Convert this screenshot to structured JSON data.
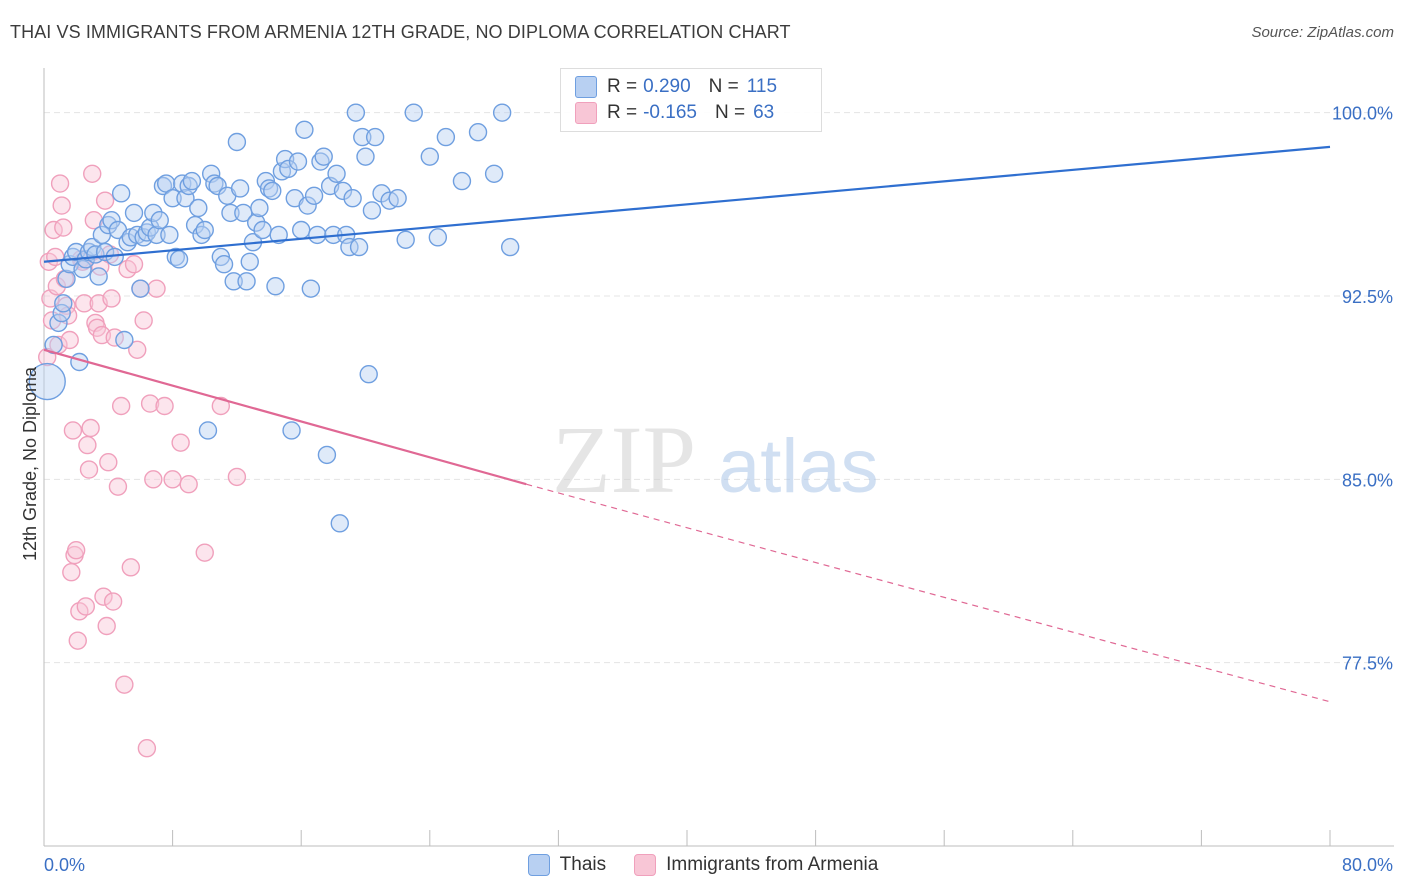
{
  "title": "THAI VS IMMIGRANTS FROM ARMENIA 12TH GRADE, NO DIPLOMA CORRELATION CHART",
  "source": "Source: ZipAtlas.com",
  "watermark": {
    "zip": "ZIP",
    "atlas": "atlas"
  },
  "colors": {
    "blue": "#6f9fe0",
    "blue_line": "#2f6fd0",
    "pink": "#f0a0bc",
    "pink_line": "#e06894",
    "tick_label": "#3a6fc4"
  },
  "legend": {
    "r_label": "R =",
    "n_label": "N =",
    "rows": [
      {
        "r": "0.290",
        "n": "115"
      },
      {
        "r": "-0.165",
        "n": "63"
      }
    ]
  },
  "bottom_legend": [
    "Thais",
    "Immigrants from Armenia"
  ],
  "chart_data": {
    "type": "scatter",
    "title": "THAI VS IMMIGRANTS FROM ARMENIA 12TH GRADE, NO DIPLOMA CORRELATION CHART",
    "xlabel": "",
    "ylabel": "12th Grade, No Diploma",
    "xlim": [
      0,
      80
    ],
    "ylim": [
      70,
      101.5
    ],
    "x_tick_labels": [
      "0.0%",
      "80.0%"
    ],
    "y_ticks": [
      100.0,
      92.5,
      85.0,
      77.5
    ],
    "y_tick_labels": [
      "100.0%",
      "92.5%",
      "85.0%",
      "77.5%"
    ],
    "grid": true,
    "series": [
      {
        "name": "Thais",
        "r": 0.29,
        "n": 115,
        "trend": {
          "x0": 0,
          "y0": 93.9,
          "x1": 80,
          "y1": 98.6
        },
        "points": [
          [
            0.2,
            89.0
          ],
          [
            0.6,
            90.5
          ],
          [
            0.9,
            91.4
          ],
          [
            1.1,
            91.8
          ],
          [
            1.2,
            92.2
          ],
          [
            1.4,
            93.2
          ],
          [
            1.6,
            93.8
          ],
          [
            1.8,
            94.1
          ],
          [
            2.0,
            94.3
          ],
          [
            2.2,
            89.8
          ],
          [
            2.4,
            93.6
          ],
          [
            2.6,
            94.0
          ],
          [
            2.8,
            94.3
          ],
          [
            3.0,
            94.5
          ],
          [
            3.2,
            94.2
          ],
          [
            3.4,
            93.3
          ],
          [
            3.6,
            95.0
          ],
          [
            3.8,
            94.3
          ],
          [
            4.0,
            95.4
          ],
          [
            4.2,
            95.6
          ],
          [
            4.4,
            94.1
          ],
          [
            4.6,
            95.2
          ],
          [
            4.8,
            96.7
          ],
          [
            5.0,
            90.7
          ],
          [
            5.2,
            94.7
          ],
          [
            5.4,
            94.9
          ],
          [
            5.6,
            95.9
          ],
          [
            5.8,
            95.0
          ],
          [
            6.0,
            92.8
          ],
          [
            6.2,
            94.9
          ],
          [
            6.4,
            95.1
          ],
          [
            6.6,
            95.3
          ],
          [
            6.8,
            95.9
          ],
          [
            7.0,
            95.0
          ],
          [
            7.2,
            95.6
          ],
          [
            7.4,
            97.0
          ],
          [
            7.6,
            97.1
          ],
          [
            7.8,
            95.0
          ],
          [
            8.0,
            96.5
          ],
          [
            8.2,
            94.1
          ],
          [
            8.4,
            94.0
          ],
          [
            8.6,
            97.1
          ],
          [
            8.8,
            96.5
          ],
          [
            9.0,
            97.0
          ],
          [
            9.2,
            97.2
          ],
          [
            9.4,
            95.4
          ],
          [
            9.6,
            96.1
          ],
          [
            9.8,
            95.0
          ],
          [
            10.0,
            95.2
          ],
          [
            10.2,
            87.0
          ],
          [
            10.4,
            97.5
          ],
          [
            10.6,
            97.1
          ],
          [
            10.8,
            97.0
          ],
          [
            11.0,
            94.1
          ],
          [
            11.2,
            93.8
          ],
          [
            11.4,
            96.6
          ],
          [
            11.6,
            95.9
          ],
          [
            11.8,
            93.1
          ],
          [
            12.0,
            98.8
          ],
          [
            12.2,
            96.9
          ],
          [
            12.4,
            95.9
          ],
          [
            12.6,
            93.1
          ],
          [
            12.8,
            93.9
          ],
          [
            13.0,
            94.7
          ],
          [
            13.2,
            95.5
          ],
          [
            13.4,
            96.1
          ],
          [
            13.6,
            95.2
          ],
          [
            13.8,
            97.2
          ],
          [
            14.0,
            96.9
          ],
          [
            14.2,
            96.8
          ],
          [
            14.4,
            92.9
          ],
          [
            14.6,
            95.0
          ],
          [
            14.8,
            97.6
          ],
          [
            15.0,
            98.1
          ],
          [
            15.2,
            97.7
          ],
          [
            15.4,
            87.0
          ],
          [
            15.6,
            96.5
          ],
          [
            15.8,
            98.0
          ],
          [
            16.0,
            95.2
          ],
          [
            16.2,
            99.3
          ],
          [
            16.4,
            96.2
          ],
          [
            16.6,
            92.8
          ],
          [
            16.8,
            96.6
          ],
          [
            17.0,
            95.0
          ],
          [
            17.2,
            98.0
          ],
          [
            17.4,
            98.2
          ],
          [
            17.6,
            86.0
          ],
          [
            17.8,
            97.0
          ],
          [
            18.0,
            95.0
          ],
          [
            18.2,
            97.5
          ],
          [
            18.4,
            83.2
          ],
          [
            18.6,
            96.8
          ],
          [
            18.8,
            95.0
          ],
          [
            19.0,
            94.5
          ],
          [
            19.2,
            96.5
          ],
          [
            19.4,
            100.0
          ],
          [
            19.6,
            94.5
          ],
          [
            19.8,
            99.0
          ],
          [
            20.0,
            98.2
          ],
          [
            20.2,
            89.3
          ],
          [
            20.4,
            96.0
          ],
          [
            20.6,
            99.0
          ],
          [
            21.0,
            96.7
          ],
          [
            21.5,
            96.4
          ],
          [
            22.0,
            96.5
          ],
          [
            22.5,
            94.8
          ],
          [
            23.0,
            100.0
          ],
          [
            24.0,
            98.2
          ],
          [
            24.5,
            94.9
          ],
          [
            25.0,
            99.0
          ],
          [
            26.0,
            97.2
          ],
          [
            27.0,
            99.2
          ],
          [
            28.0,
            97.5
          ],
          [
            28.5,
            100.0
          ],
          [
            29.0,
            94.5
          ]
        ]
      },
      {
        "name": "Immigrants from Armenia",
        "r": -0.165,
        "n": 63,
        "trend": {
          "x0": 0,
          "y0": 90.3,
          "x1": 30,
          "y1": 84.8,
          "dash_x1": 80,
          "dash_y1": 75.9
        },
        "points": [
          [
            0.2,
            90.0
          ],
          [
            0.3,
            93.9
          ],
          [
            0.4,
            92.4
          ],
          [
            0.5,
            91.5
          ],
          [
            0.6,
            95.2
          ],
          [
            0.7,
            94.1
          ],
          [
            0.8,
            92.9
          ],
          [
            0.9,
            90.5
          ],
          [
            1.0,
            97.1
          ],
          [
            1.1,
            96.2
          ],
          [
            1.2,
            95.3
          ],
          [
            1.3,
            93.2
          ],
          [
            1.4,
            92.1
          ],
          [
            1.5,
            91.7
          ],
          [
            1.6,
            90.7
          ],
          [
            1.7,
            81.2
          ],
          [
            1.8,
            87.0
          ],
          [
            1.9,
            81.9
          ],
          [
            2.0,
            82.1
          ],
          [
            2.1,
            78.4
          ],
          [
            2.2,
            79.6
          ],
          [
            2.3,
            94.0
          ],
          [
            2.4,
            93.9
          ],
          [
            2.5,
            92.2
          ],
          [
            2.6,
            79.8
          ],
          [
            2.7,
            86.4
          ],
          [
            2.8,
            85.4
          ],
          [
            2.9,
            87.1
          ],
          [
            3.0,
            97.5
          ],
          [
            3.1,
            95.6
          ],
          [
            3.2,
            91.4
          ],
          [
            3.3,
            91.2
          ],
          [
            3.4,
            92.2
          ],
          [
            3.5,
            93.7
          ],
          [
            3.6,
            90.9
          ],
          [
            3.7,
            80.2
          ],
          [
            3.8,
            96.4
          ],
          [
            3.9,
            79.0
          ],
          [
            4.0,
            85.7
          ],
          [
            4.1,
            94.2
          ],
          [
            4.2,
            92.4
          ],
          [
            4.3,
            80.0
          ],
          [
            4.4,
            90.8
          ],
          [
            4.6,
            84.7
          ],
          [
            4.8,
            88.0
          ],
          [
            5.0,
            76.6
          ],
          [
            5.2,
            93.6
          ],
          [
            5.4,
            81.4
          ],
          [
            5.6,
            93.8
          ],
          [
            5.8,
            90.3
          ],
          [
            6.0,
            92.8
          ],
          [
            6.2,
            91.5
          ],
          [
            6.4,
            74.0
          ],
          [
            6.6,
            88.1
          ],
          [
            6.8,
            85.0
          ],
          [
            7.0,
            92.8
          ],
          [
            7.5,
            88.0
          ],
          [
            8.0,
            85.0
          ],
          [
            8.5,
            86.5
          ],
          [
            9.0,
            84.8
          ],
          [
            10.0,
            82.0
          ],
          [
            11.0,
            88.0
          ],
          [
            12.0,
            85.1
          ]
        ]
      }
    ]
  }
}
